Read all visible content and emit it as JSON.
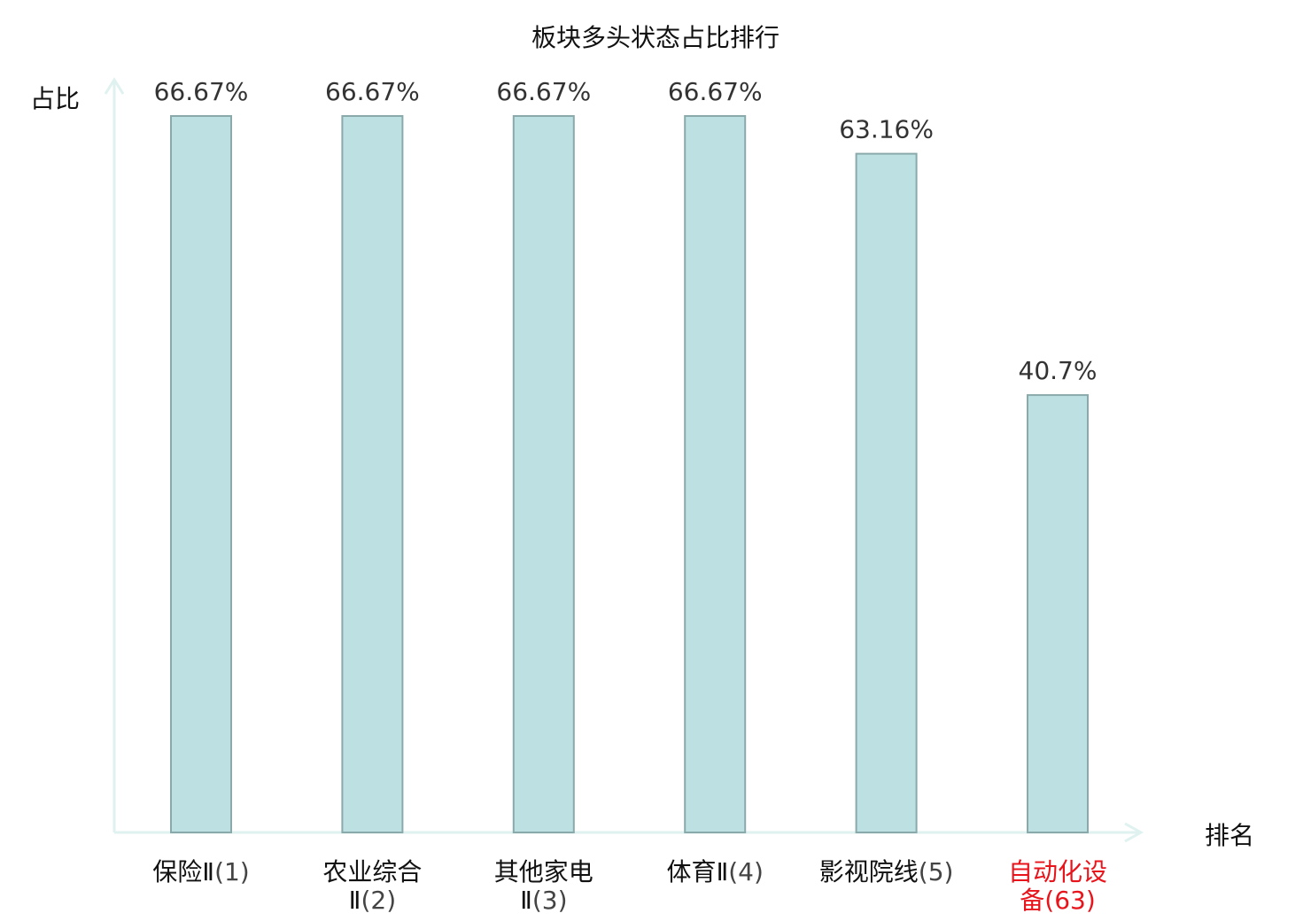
{
  "chart_data": {
    "type": "bar",
    "title": "板块多头状态占比排行",
    "xlabel": "排名",
    "ylabel": "占比",
    "ylim": [
      0,
      70
    ],
    "grid": false,
    "categories": [
      {
        "name": "保险Ⅱ",
        "rank": "(1)",
        "highlight": false
      },
      {
        "name": "农业综合Ⅱ",
        "rank": "(2)",
        "highlight": false
      },
      {
        "name": "其他家电Ⅱ",
        "rank": "(3)",
        "highlight": false
      },
      {
        "name": "体育Ⅱ",
        "rank": "(4)",
        "highlight": false
      },
      {
        "name": "影视院线",
        "rank": "(5)",
        "highlight": false
      },
      {
        "name": "自动化设备",
        "rank": "(63)",
        "highlight": true
      }
    ],
    "values": [
      66.67,
      66.67,
      66.67,
      66.67,
      63.16,
      40.7
    ],
    "value_labels": [
      "66.67%",
      "66.67%",
      "66.67%",
      "66.67%",
      "63.16%",
      "40.7%"
    ],
    "colors": {
      "bar_fill": "#bde1e3",
      "bar_stroke": "#8aa9aa",
      "axis": "#dff2ef",
      "text": "#111111",
      "value_text": "#333333",
      "highlight_text": "#e8141c"
    }
  }
}
